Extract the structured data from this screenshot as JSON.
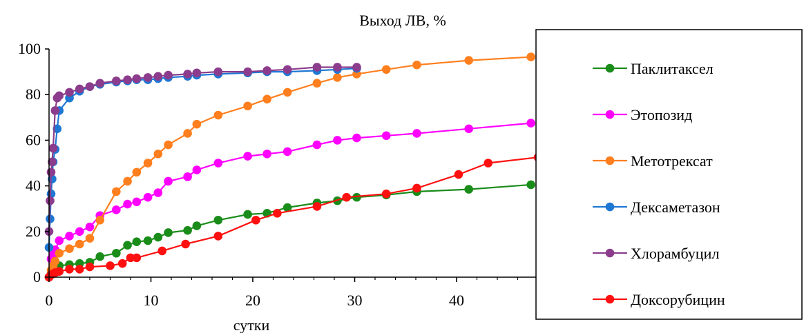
{
  "chart_data": {
    "type": "line",
    "title": "Выход ЛВ, %",
    "xlabel": "сутки",
    "ylabel": "",
    "xlim": [
      0,
      48
    ],
    "ylim": [
      0,
      100
    ],
    "xticks": [
      0,
      10,
      20,
      30,
      40
    ],
    "yticks": [
      0,
      20,
      40,
      60,
      80,
      100
    ],
    "grid": false,
    "legend_position": "right",
    "series": [
      {
        "name": "Паклитаксел",
        "color": "#1a8c1a",
        "x": [
          0,
          0.2,
          0.4,
          0.6,
          1,
          2,
          3,
          4,
          5,
          6.6,
          7.7,
          8.6,
          9.7,
          10.7,
          11.7,
          13.6,
          14.5,
          16.6,
          19.5,
          21.4,
          23.4,
          26.3,
          28.3,
          30.2,
          33.1,
          36.1,
          41.2,
          47.3
        ],
        "y": [
          0,
          1.5,
          2.5,
          3.5,
          5,
          5.5,
          6,
          6.5,
          9,
          10.5,
          14,
          15.5,
          16,
          17.5,
          19.5,
          20.5,
          22.5,
          25,
          27.5,
          28,
          30.5,
          32.5,
          33.5,
          35,
          36,
          37.5,
          38.5,
          40.5
        ]
      },
      {
        "name": "Этопозид",
        "color": "#ff00ff",
        "x": [
          0,
          0.2,
          0.4,
          0.6,
          1,
          2,
          3,
          4,
          5,
          6.6,
          7.7,
          8.6,
          9.7,
          10.7,
          11.7,
          13.6,
          14.5,
          16.6,
          19.5,
          21.4,
          23.4,
          26.3,
          28.3,
          30.2,
          33.1,
          36.1,
          41.2,
          47.3
        ],
        "y": [
          0,
          8,
          10,
          12,
          16,
          18,
          20,
          22,
          27,
          29.5,
          32,
          33,
          35,
          37,
          42,
          44,
          47,
          50,
          53,
          54,
          55,
          58,
          60,
          61,
          62,
          63,
          65,
          67.5
        ]
      },
      {
        "name": "Метотрексат",
        "color": "#ff7f1e",
        "x": [
          0,
          0.2,
          0.4,
          0.6,
          1,
          2,
          3,
          4,
          5,
          6.6,
          7.7,
          8.6,
          9.7,
          10.7,
          11.7,
          13.6,
          14.5,
          16.6,
          19.5,
          21.4,
          23.4,
          26.3,
          28.3,
          30.2,
          33.1,
          36.1,
          41.2,
          47.3
        ],
        "y": [
          0,
          3,
          5,
          7,
          10.5,
          12.5,
          14.5,
          17,
          25,
          37.5,
          42,
          46,
          50,
          54,
          58,
          63,
          67,
          71,
          75,
          78,
          81,
          85,
          87.5,
          89,
          91,
          93,
          95,
          96.5
        ]
      },
      {
        "name": "Дексаметазон",
        "color": "#1f77d4",
        "x": [
          0,
          0.1,
          0.2,
          0.3,
          0.4,
          0.6,
          0.8,
          1,
          2,
          3,
          4,
          5,
          6.6,
          7.7,
          8.6,
          9.7,
          10.7,
          11.7,
          13.6,
          14.5,
          16.6,
          19.5,
          21.4,
          23.4,
          26.3,
          28.3,
          30.2
        ],
        "y": [
          13,
          25.5,
          36.5,
          43,
          50.5,
          56,
          65,
          73,
          78.5,
          81.5,
          83.5,
          84.5,
          85.5,
          86,
          86.5,
          86.5,
          87,
          87.5,
          88,
          88.5,
          89,
          89.5,
          90,
          90,
          90.5,
          91,
          91.5
        ]
      },
      {
        "name": "Хлорамбуцил",
        "color": "#8c3c8c",
        "x": [
          0,
          0.1,
          0.2,
          0.3,
          0.4,
          0.6,
          0.8,
          1,
          2,
          3,
          4,
          5,
          6.6,
          7.7,
          8.6,
          9.7,
          10.7,
          11.7,
          13.6,
          14.5,
          16.6,
          19.5,
          21.4,
          23.4,
          26.3,
          28.3,
          30.2
        ],
        "y": [
          20,
          33.5,
          46,
          50.5,
          56.5,
          73,
          78.5,
          79.5,
          81,
          82.5,
          83.5,
          85,
          86,
          86.5,
          87,
          87.5,
          88,
          88.5,
          89,
          89.5,
          90,
          90,
          90.5,
          91,
          92,
          92,
          92
        ]
      },
      {
        "name": "Доксорубицин",
        "color": "#ff1010",
        "x": [
          0,
          0.2,
          0.4,
          0.6,
          1,
          2,
          3,
          4,
          6,
          7.2,
          8,
          8.6,
          11.1,
          13.4,
          16.6,
          20.3,
          22.4,
          26.3,
          29.2,
          33.1,
          36.1,
          40.2,
          43.1,
          48
        ],
        "y": [
          0,
          1,
          1.5,
          2,
          2.5,
          3.5,
          3.5,
          4.5,
          5,
          6,
          8.5,
          8.5,
          11.5,
          14.5,
          18,
          25,
          28,
          31,
          35,
          36.5,
          39,
          45,
          50,
          52.5
        ]
      }
    ]
  }
}
